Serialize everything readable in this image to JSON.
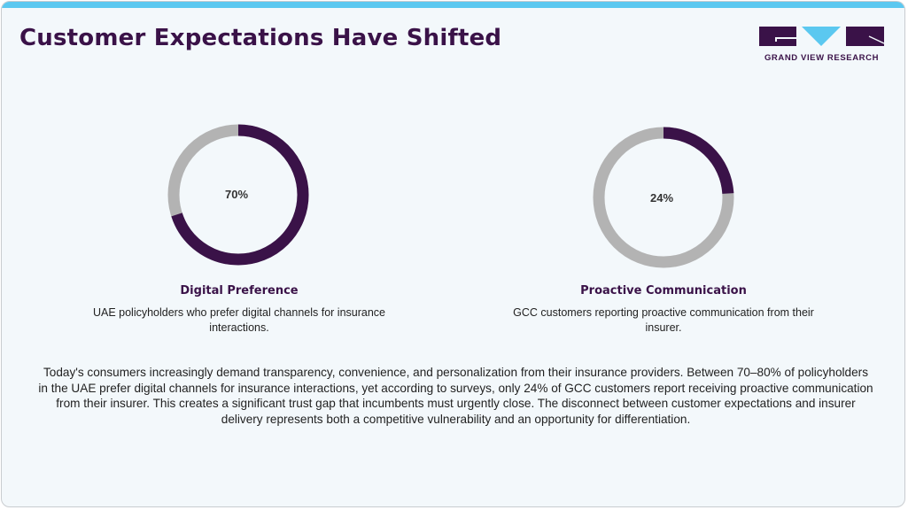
{
  "title": "Customer Expectations Have Shifted",
  "logo": {
    "text": "GRAND VIEW RESEARCH",
    "colors": {
      "dark": "#3a1248",
      "accent": "#5bc8f0"
    }
  },
  "colors": {
    "primary": "#3a1248",
    "remainder": "#b3b3b3",
    "top_bar": "#5bc8f0"
  },
  "stats": [
    {
      "value": 70,
      "label": "70%",
      "title": "Digital Preference",
      "description": "UAE policyholders who prefer digital channels for insurance interactions."
    },
    {
      "value": 24,
      "label": "24%",
      "title": "Proactive Communication",
      "description": "GCC customers reporting proactive communication from their insurer."
    }
  ],
  "body_text": "Today's consumers increasingly demand transparency, convenience, and personalization from their insurance providers. Between 70–80% of policyholders in the UAE prefer digital channels for insurance interactions, yet according to surveys, only 24% of GCC customers report receiving proactive communication from their insurer. This creates a significant trust gap that incumbents must urgently close. The disconnect between customer expectations and insurer delivery represents both a competitive vulnerability and an opportunity for differentiation."
}
